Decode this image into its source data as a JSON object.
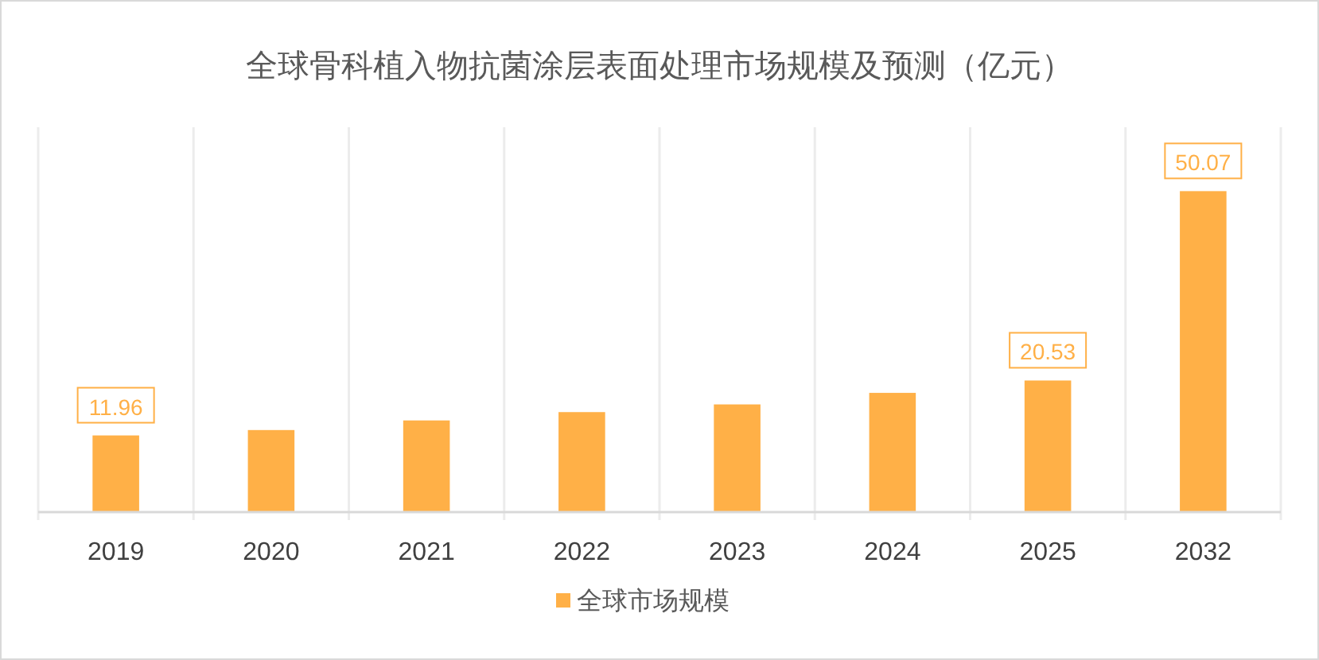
{
  "chart_data": {
    "type": "bar",
    "title": "全球骨科植入物抗菌涂层表面处理市场规模及预测（亿元）",
    "categories": [
      "2019",
      "2020",
      "2021",
      "2022",
      "2023",
      "2024",
      "2025",
      "2032"
    ],
    "series": [
      {
        "name": "全球市场规模",
        "color": "#ffb047",
        "values": [
          11.96,
          12.8,
          14.3,
          15.6,
          16.8,
          18.6,
          20.53,
          50.07
        ],
        "value_labels": [
          "11.96",
          null,
          null,
          null,
          null,
          null,
          "20.53",
          "50.07"
        ]
      }
    ],
    "grid": "x",
    "legend": "bottom"
  }
}
